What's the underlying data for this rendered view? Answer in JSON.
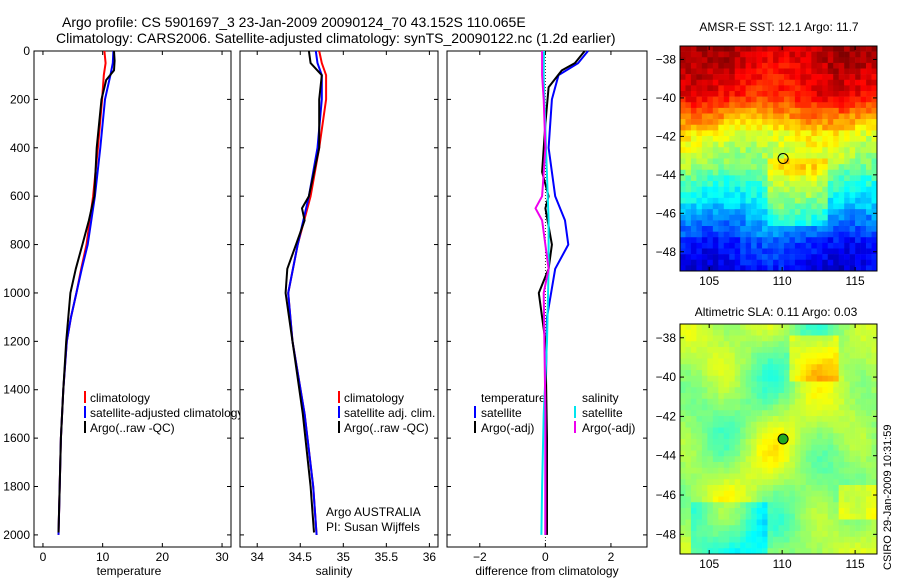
{
  "header": {
    "title_line1": "Argo profile: CS 5901697_3 23-Jan-2009 20090124_70 43.152S 110.065E",
    "title_line2": "Climatology: CARS2006. Satellite-adjusted climatology: synTS_20090122.nc (1.2d earlier)"
  },
  "side_text": "CSIRO 29-Jan-2009 10:31:59",
  "colors": {
    "climatology": "#ff0000",
    "satellite": "#0000ff",
    "argo": "#000000",
    "salinity_satellite": "#00e5ee",
    "salinity_argo": "#ee00ee"
  },
  "chart_data": [
    {
      "type": "line",
      "id": "temperature",
      "xlabel": "temperature",
      "ylim": [
        2050,
        0
      ],
      "xlim": [
        -1.5,
        31.5
      ],
      "xticks": [
        0,
        10,
        20,
        30
      ],
      "yticks": [
        0,
        200,
        400,
        600,
        800,
        1000,
        1200,
        1400,
        1600,
        1800,
        2000
      ],
      "legend": {
        "placement": "center-right",
        "entries": [
          "climatology",
          "satellite-adjusted climatology",
          "Argo(..raw -QC)"
        ]
      },
      "series": [
        {
          "name": "climatology",
          "color": "#ff0000",
          "x": [
            10.3,
            10.5,
            10.2,
            9.9,
            9.2,
            8.4,
            7.3,
            6.4,
            5.6,
            4.7,
            4.0,
            3.4,
            3.0,
            2.8,
            2.6
          ],
          "y": [
            0,
            50,
            100,
            200,
            400,
            600,
            800,
            900,
            1000,
            1100,
            1200,
            1400,
            1600,
            1800,
            2000
          ]
        },
        {
          "name": "satellite-adjusted climatology",
          "color": "#0000ff",
          "x": [
            11.8,
            11.7,
            11.3,
            10.4,
            9.6,
            8.7,
            7.5,
            6.5,
            5.6,
            4.7,
            4.0,
            3.4,
            3.0,
            2.8,
            2.6
          ],
          "y": [
            0,
            50,
            100,
            200,
            400,
            600,
            800,
            900,
            1000,
            1100,
            1200,
            1400,
            1600,
            1800,
            2000
          ]
        },
        {
          "name": "Argo(..raw -QC)",
          "color": "#000000",
          "x": [
            11.9,
            12.0,
            11.9,
            10.6,
            9.8,
            9.0,
            8.6,
            7.7,
            6.6,
            5.5,
            4.6,
            3.9,
            3.4,
            3.0,
            2.8,
            2.6
          ],
          "y": [
            0,
            40,
            80,
            120,
            200,
            400,
            600,
            700,
            800,
            900,
            1000,
            1200,
            1400,
            1600,
            1800,
            1990
          ]
        }
      ]
    },
    {
      "type": "line",
      "id": "salinity",
      "xlabel": "salinity",
      "ylim": [
        2050,
        0
      ],
      "xlim": [
        33.8,
        36.1
      ],
      "xticks": [
        34,
        34.5,
        35,
        35.5,
        36
      ],
      "yticks": [
        0,
        200,
        400,
        600,
        800,
        1000,
        1200,
        1400,
        1600,
        1800,
        2000
      ],
      "legend": {
        "placement": "center-right",
        "entries": [
          "climatology",
          "satellite adj. clim.",
          "Argo(..raw -QC)"
        ]
      },
      "annotation": [
        "Argo AUSTRALIA",
        "PI: Susan Wijffels"
      ],
      "series": [
        {
          "name": "climatology",
          "color": "#ff0000",
          "x": [
            34.72,
            34.75,
            34.8,
            34.8,
            34.72,
            34.62,
            34.47,
            34.36,
            34.41,
            34.55,
            34.65,
            34.69
          ],
          "y": [
            0,
            50,
            100,
            200,
            400,
            600,
            800,
            1000,
            1200,
            1500,
            1800,
            2000
          ]
        },
        {
          "name": "satellite adj. clim.",
          "color": "#0000ff",
          "x": [
            34.68,
            34.7,
            34.75,
            34.75,
            34.7,
            34.6,
            34.47,
            34.36,
            34.41,
            34.55,
            34.65,
            34.69
          ],
          "y": [
            0,
            50,
            100,
            200,
            400,
            600,
            800,
            1000,
            1200,
            1500,
            1800,
            2000
          ]
        },
        {
          "name": "Argo(..raw -QC)",
          "color": "#000000",
          "x": [
            34.6,
            34.62,
            34.75,
            34.72,
            34.72,
            34.6,
            34.52,
            34.55,
            34.45,
            34.35,
            34.33,
            34.41,
            34.53,
            34.62,
            34.66
          ],
          "y": [
            0,
            50,
            100,
            200,
            400,
            600,
            650,
            700,
            800,
            900,
            1000,
            1200,
            1500,
            1800,
            1990
          ]
        }
      ]
    },
    {
      "type": "line",
      "id": "difference",
      "xlabel": "difference from climatology",
      "ylim": [
        2050,
        0
      ],
      "xlim": [
        -3,
        3.1
      ],
      "xticks": [
        -2,
        0,
        2
      ],
      "yticks": [
        0,
        200,
        400,
        600,
        800,
        1000,
        1200,
        1400,
        1600,
        1800,
        2000
      ],
      "legend": {
        "placement": "center",
        "temperature_header": "temperature",
        "salinity_header": "salinity",
        "temperature_entries": [
          "satellite",
          "Argo(-adj)"
        ],
        "salinity_entries": [
          "satellite",
          "Argo(-adj)"
        ]
      },
      "series": [
        {
          "name": "temperature satellite",
          "color": "#0000ff",
          "x": [
            1.3,
            1.0,
            0.4,
            0.2,
            0.1,
            0.2,
            0.3,
            0.6,
            0.7,
            0.3,
            0.05,
            0.0,
            0.0
          ],
          "y": [
            0,
            50,
            100,
            200,
            400,
            500,
            600,
            700,
            800,
            900,
            1100,
            1500,
            2000
          ]
        },
        {
          "name": "temperature Argo(-adj)",
          "color": "#000000",
          "x": [
            1.2,
            0.9,
            0.5,
            0.1,
            0.0,
            -0.1,
            0.1,
            0.0,
            0.2,
            0.1,
            -0.2,
            0.0,
            0.05,
            0.05
          ],
          "y": [
            0,
            50,
            80,
            150,
            300,
            500,
            600,
            650,
            800,
            900,
            1000,
            1200,
            1600,
            2000
          ]
        },
        {
          "name": "salinity satellite",
          "color": "#00e5ee",
          "x": [
            -0.04,
            -0.05,
            -0.03,
            0.02,
            0.1,
            0.1,
            0.05,
            -0.05,
            -0.1,
            -0.12
          ],
          "y": [
            0,
            100,
            200,
            400,
            700,
            900,
            1200,
            1500,
            1800,
            2000
          ]
        },
        {
          "name": "salinity Argo(-adj)",
          "color": "#ee00ee",
          "x": [
            -0.1,
            -0.1,
            -0.05,
            0.0,
            -0.1,
            -0.3,
            -0.1,
            0.1,
            -0.05,
            0.0,
            0.0
          ],
          "y": [
            0,
            100,
            200,
            400,
            600,
            650,
            700,
            900,
            1000,
            1500,
            2000
          ]
        }
      ]
    },
    {
      "type": "heatmap",
      "id": "sst-map",
      "title": "AMSR-E SST: 12.1 Argo: 11.7",
      "xlim": [
        103,
        116.5
      ],
      "ylim": [
        -49,
        -37.3
      ],
      "xticks": [
        105,
        110,
        115
      ],
      "yticks": [
        -38,
        -40,
        -42,
        -44,
        -46,
        -48
      ],
      "marker": {
        "lon": 110.065,
        "lat": -43.152
      }
    },
    {
      "type": "heatmap",
      "id": "sla-map",
      "title": "Altimetric SLA: 0.11 Argo: 0.03",
      "xlim": [
        103,
        116.5
      ],
      "ylim": [
        -49,
        -37.3
      ],
      "xticks": [
        105,
        110,
        115
      ],
      "yticks": [
        -38,
        -40,
        -42,
        -44,
        -46,
        -48
      ],
      "marker": {
        "lon": 110.065,
        "lat": -43.152
      }
    }
  ]
}
